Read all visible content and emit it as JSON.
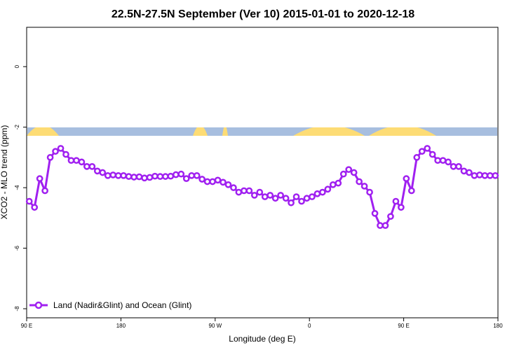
{
  "chart_data": {
    "type": "line",
    "title": "22.5N-27.5N September (Ver 10)   2015-01-01 to 2020-12-18",
    "xlabel": "Longitude (deg E)",
    "ylabel": "XCO2 - MLO trend (ppm)",
    "xlim": [
      90,
      540
    ],
    "ylim": [
      -8.3,
      1.3
    ],
    "x_ticks": [
      {
        "value": 90,
        "label": "90 E"
      },
      {
        "value": 180,
        "label": "180"
      },
      {
        "value": 270,
        "label": "90 W"
      },
      {
        "value": 360,
        "label": "0"
      },
      {
        "value": 450,
        "label": "90 E"
      },
      {
        "value": 540,
        "label": "180"
      }
    ],
    "y_ticks": [
      {
        "value": 0,
        "label": "0"
      },
      {
        "value": -2,
        "label": "-2"
      },
      {
        "value": -4,
        "label": "-4"
      },
      {
        "value": -6,
        "label": "-6"
      },
      {
        "value": -8,
        "label": "-8"
      }
    ],
    "legend_position": "bottom-left",
    "grid": false,
    "series": [
      {
        "name": "Land (Nadir&Glint) and Ocean (Glint)",
        "color": "#a020f0",
        "x": [
          92.5,
          97.5,
          102.5,
          107.5,
          112.5,
          117.5,
          122.5,
          127.5,
          132.5,
          137.5,
          142.5,
          147.5,
          152.5,
          157.5,
          162.5,
          167.5,
          172.5,
          177.5,
          182.5,
          187.5,
          192.5,
          197.5,
          202.5,
          207.5,
          212.5,
          217.5,
          222.5,
          227.5,
          232.5,
          237.5,
          242.5,
          247.5,
          252.5,
          257.5,
          262.5,
          267.5,
          272.5,
          277.5,
          282.5,
          287.5,
          292.5,
          297.5,
          302.5,
          307.5,
          312.5,
          317.5,
          322.5,
          327.5,
          332.5,
          337.5,
          342.5,
          347.5,
          352.5,
          357.5,
          362.5,
          367.5,
          372.5,
          377.5,
          382.5,
          387.5,
          392.5,
          397.5,
          402.5,
          407.5,
          412.5,
          417.5,
          422.5,
          427.5,
          432.5,
          437.5,
          442.5,
          447.5,
          452.5,
          457.5,
          462.5,
          467.5,
          472.5,
          477.5,
          482.5,
          487.5,
          492.5,
          497.5,
          502.5,
          507.5,
          512.5,
          517.5,
          522.5,
          527.5,
          532.5,
          537.5
        ],
        "y": [
          -4.45,
          -4.65,
          -3.7,
          -4.1,
          -3.0,
          -2.8,
          -2.7,
          -2.9,
          -3.1,
          -3.1,
          -3.15,
          -3.3,
          -3.3,
          -3.45,
          -3.5,
          -3.6,
          -3.58,
          -3.6,
          -3.6,
          -3.63,
          -3.65,
          -3.64,
          -3.68,
          -3.66,
          -3.62,
          -3.63,
          -3.63,
          -3.62,
          -3.57,
          -3.55,
          -3.7,
          -3.6,
          -3.6,
          -3.72,
          -3.8,
          -3.8,
          -3.75,
          -3.82,
          -3.9,
          -4.0,
          -4.15,
          -4.1,
          -4.1,
          -4.25,
          -4.15,
          -4.3,
          -4.25,
          -4.35,
          -4.25,
          -4.35,
          -4.5,
          -4.3,
          -4.45,
          -4.35,
          -4.3,
          -4.2,
          -4.15,
          -4.05,
          -3.9,
          -3.85,
          -3.55,
          -3.4,
          -3.5,
          -3.8,
          -3.95,
          -4.15,
          -4.85,
          -5.25,
          -5.25,
          -4.95,
          -4.45,
          -4.65,
          -3.7,
          -4.1,
          -3.0,
          -2.8,
          -2.7,
          -2.9,
          -3.1,
          -3.1,
          -3.15,
          -3.3,
          -3.3,
          -3.45,
          -3.5,
          -3.6,
          -3.58,
          -3.6,
          -3.6,
          -3.6
        ]
      }
    ]
  }
}
